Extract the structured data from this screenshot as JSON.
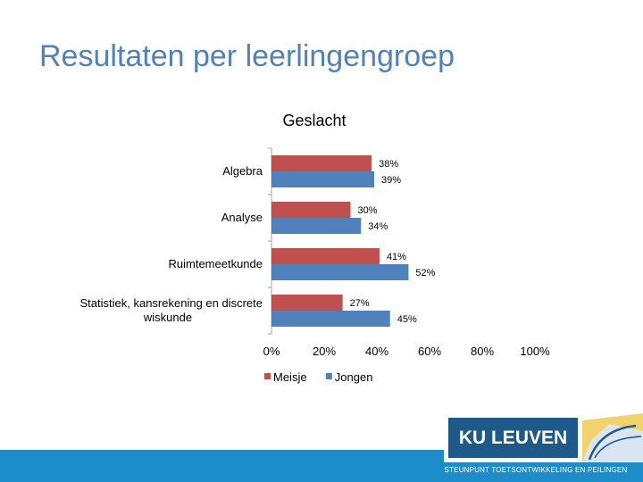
{
  "slide": {
    "title": "Resultaten per leerlingengroep",
    "logo_text": "KU LEUVEN",
    "footer_text": "STEUNPUNT TOETSONTWIKKELING EN PEILINGEN"
  },
  "chart_data": {
    "type": "bar",
    "orientation": "horizontal",
    "title": "Geslacht",
    "categories": [
      "Algebra",
      "Analyse",
      "Ruimtemeetkunde",
      "Statistiek, kansrekening en discrete wiskunde"
    ],
    "category_lines": [
      [
        "Algebra"
      ],
      [
        "Analyse"
      ],
      [
        "Ruimtemeetkunde"
      ],
      [
        "Statistiek, kansrekening en discrete",
        "wiskunde"
      ]
    ],
    "series": [
      {
        "name": "Meisje",
        "values": [
          38,
          30,
          41,
          27
        ],
        "labels": [
          "38%",
          "30%",
          "41%",
          "27%"
        ],
        "color": "#c0504d"
      },
      {
        "name": "Jongen",
        "values": [
          39,
          34,
          52,
          45
        ],
        "labels": [
          "39%",
          "34%",
          "52%",
          "45%"
        ],
        "color": "#4f81bd"
      }
    ],
    "xlim": [
      0,
      100
    ],
    "xticks": [
      0,
      20,
      40,
      60,
      80,
      100
    ],
    "xtick_labels": [
      "0%",
      "20%",
      "40%",
      "60%",
      "80%",
      "100%"
    ],
    "legend_position": "bottom"
  }
}
